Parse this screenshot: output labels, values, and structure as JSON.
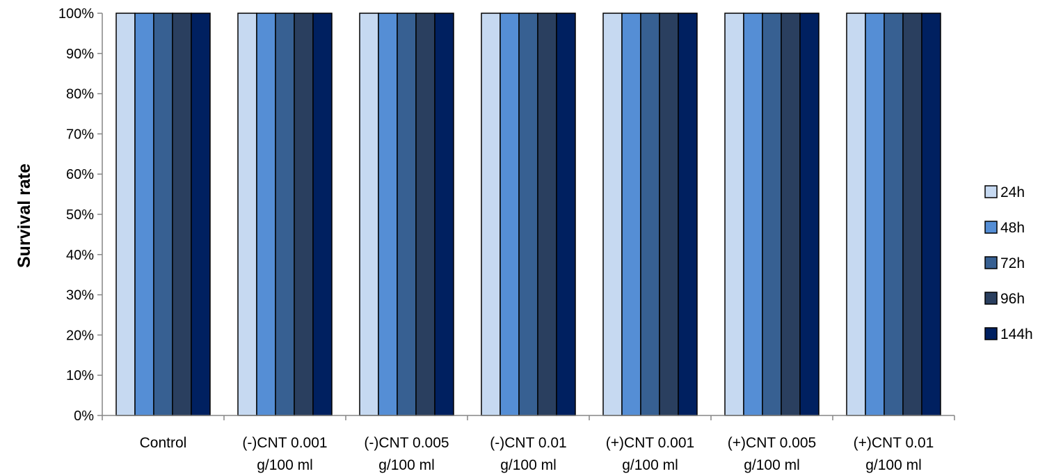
{
  "chart_data": {
    "type": "bar",
    "title": "",
    "xlabel": "",
    "ylabel": "Survival rate",
    "ylim": [
      0,
      100
    ],
    "ytick_step": 10,
    "ytick_format": "percent",
    "grid": false,
    "legend_position": "right",
    "categories": [
      [
        "Control"
      ],
      [
        "(-)CNT 0.001",
        "g/100 ml"
      ],
      [
        "(-)CNT 0.005",
        "g/100 ml"
      ],
      [
        "(-)CNT 0.01",
        "g/100 ml"
      ],
      [
        "(+)CNT 0.001",
        "g/100 ml"
      ],
      [
        "(+)CNT 0.005",
        "g/100 ml"
      ],
      [
        "(+)CNT 0.01",
        "g/100 ml"
      ]
    ],
    "series": [
      {
        "name": "24h",
        "color": "#C6D9F1",
        "values": [
          100,
          100,
          100,
          100,
          100,
          100,
          100
        ]
      },
      {
        "name": "48h",
        "color": "#558ED5",
        "values": [
          100,
          100,
          100,
          100,
          100,
          100,
          100
        ]
      },
      {
        "name": "72h",
        "color": "#376092",
        "values": [
          100,
          100,
          100,
          100,
          100,
          100,
          100
        ]
      },
      {
        "name": "96h",
        "color": "#2A3F5F",
        "values": [
          100,
          100,
          100,
          100,
          100,
          100,
          100
        ]
      },
      {
        "name": "144h",
        "color": "#002060",
        "values": [
          100,
          100,
          100,
          100,
          100,
          100,
          100
        ]
      }
    ]
  }
}
